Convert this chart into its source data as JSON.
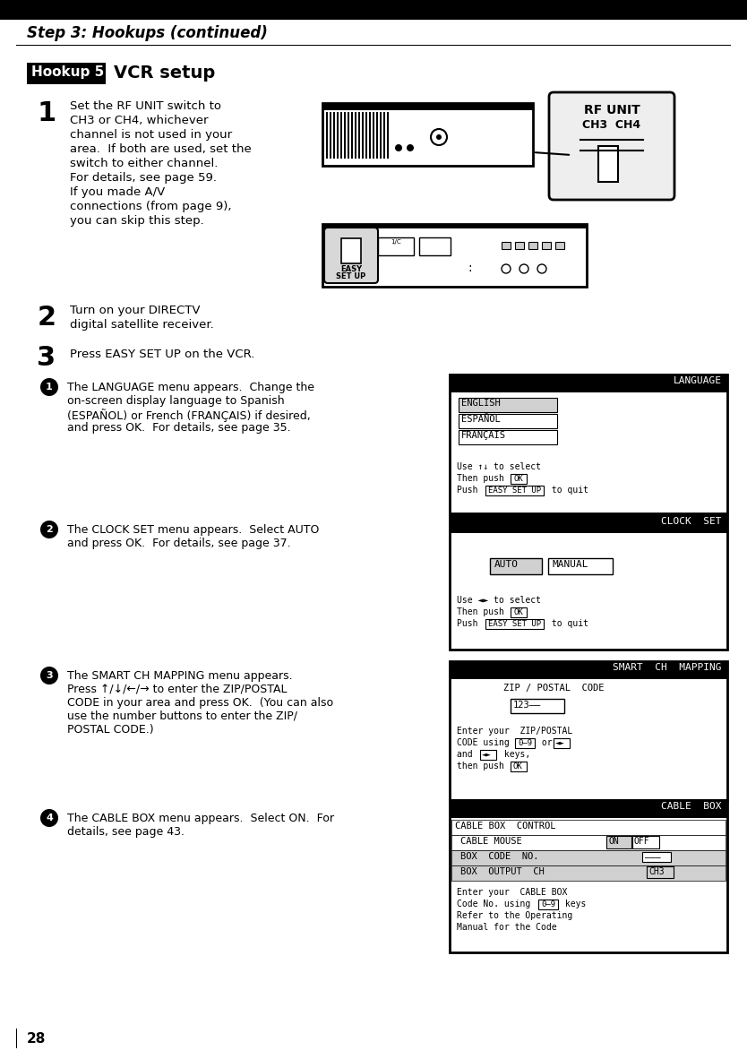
{
  "page_number": "28",
  "header_title": "Step 3: Hookups (continued)",
  "hookup_label": "Hookup 5:",
  "hookup_title": "VCR setup",
  "step1_text": [
    "Set the RF UNIT switch to",
    "CH3 or CH4, whichever",
    "channel is not used in your",
    "area.  If both are used, set the",
    "switch to either channel.",
    "For details, see page 59.",
    "If you made A/V",
    "connections (from page 9),",
    "you can skip this step."
  ],
  "step2_text": [
    "Turn on your DIRECTV",
    "digital satellite receiver."
  ],
  "step3_text": "Press EASY SET UP on the VCR.",
  "sub1_text": [
    "The LANGUAGE menu appears.  Change the",
    "on-screen display language to Spanish",
    "(ESPAÑOL) or French (FRANÇAIS) if desired,",
    "and press OK.  For details, see page 35."
  ],
  "sub2_text": [
    "The CLOCK SET menu appears.  Select AUTO",
    "and press OK.  For details, see page 37."
  ],
  "sub3_text": [
    "The SMART CH MAPPING menu appears.",
    "Press ↑/↓/←/→ to enter the ZIP/POSTAL",
    "CODE in your area and press OK.  (You can also",
    "use the number buttons to enter the ZIP/",
    "POSTAL CODE.)"
  ],
  "sub4_text": [
    "The CABLE BOX menu appears.  Select ON.  For",
    "details, see page 43."
  ],
  "bg_color": "#ffffff",
  "black": "#000000",
  "white": "#ffffff",
  "lightgray": "#d0d0d0",
  "midgray": "#b0b0b0"
}
